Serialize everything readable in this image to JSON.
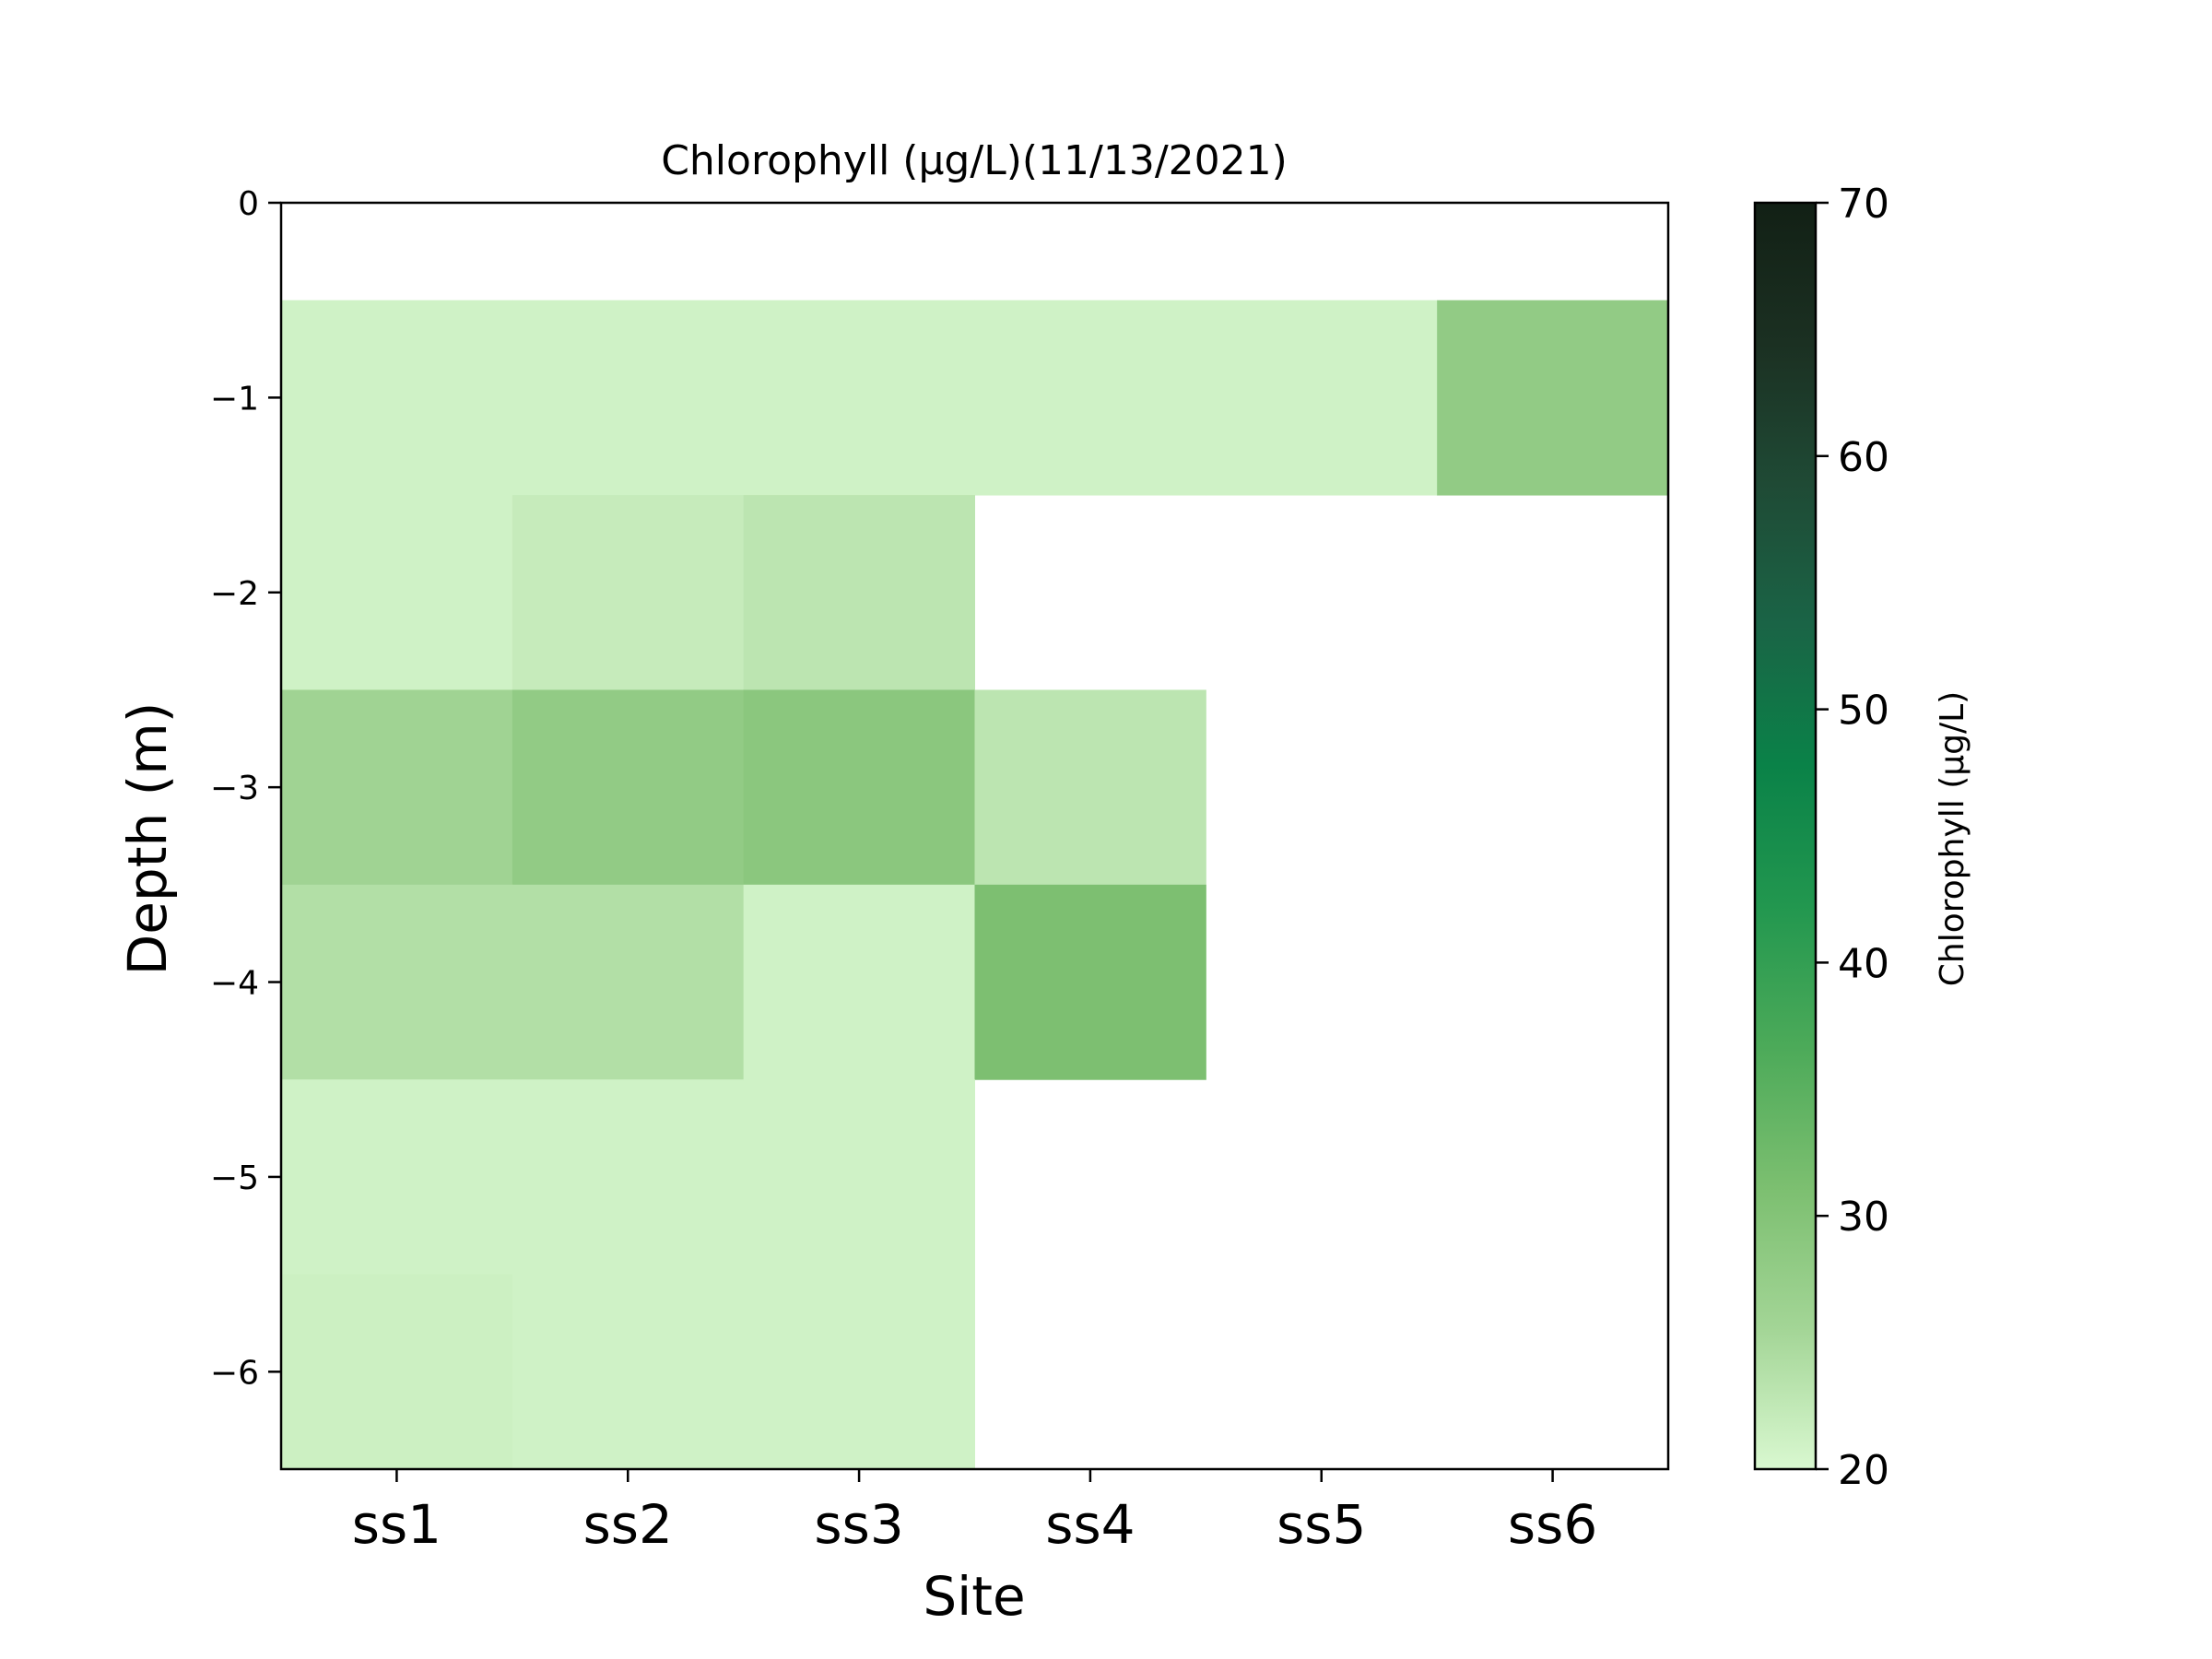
{
  "chart_data": {
    "type": "heatmap",
    "title": "Chlorophyll (µg/L)(11/13/2021)",
    "xlabel": "Site",
    "ylabel": "Depth (m)",
    "colorbar_label": "Chlorophyll (µg/L)",
    "x_categories": [
      "ss1",
      "ss2",
      "ss3",
      "ss4",
      "ss5",
      "ss6"
    ],
    "depths": [
      0,
      -1,
      -2,
      -3,
      -4,
      -5,
      -6
    ],
    "yticks": [
      0,
      -1,
      -2,
      -3,
      -4,
      -5,
      -6
    ],
    "ylim": [
      -6.5,
      0
    ],
    "clim": [
      20,
      70
    ],
    "colorbar_ticks": [
      20,
      30,
      40,
      50,
      60,
      70
    ],
    "colormap": [
      "#d9f8d0",
      "#a3d596",
      "#7cbf70",
      "#4caa59",
      "#22974f",
      "#0a8248",
      "#1a6446",
      "#1f4a35",
      "#1b3022",
      "#122015"
    ],
    "values": [
      [
        null,
        null,
        null,
        null,
        null,
        null
      ],
      [
        21,
        21,
        21,
        21,
        21,
        28
      ],
      [
        21,
        22,
        23,
        null,
        null,
        null
      ],
      [
        26,
        28,
        29,
        23,
        null,
        null
      ],
      [
        24,
        24,
        21,
        31,
        null,
        null
      ],
      [
        21,
        21,
        21,
        null,
        null,
        null
      ],
      [
        21.3,
        21,
        21,
        null,
        null,
        null
      ]
    ],
    "grid": false
  }
}
